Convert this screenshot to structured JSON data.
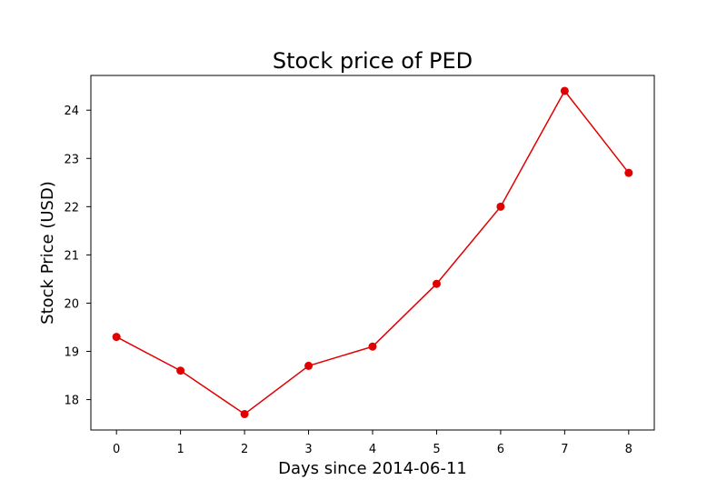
{
  "chart_data": {
    "type": "line",
    "title": "Stock price of PED",
    "xlabel": "Days since 2014-06-11",
    "ylabel": "Stock Price (USD)",
    "x": [
      0,
      1,
      2,
      3,
      4,
      5,
      6,
      7,
      8
    ],
    "series": [
      {
        "values": [
          19.3,
          18.6,
          17.7,
          18.7,
          19.1,
          20.4,
          22.0,
          24.4,
          22.7
        ],
        "color": "#e00000",
        "marker": "circle"
      }
    ],
    "xlim": [
      -0.4,
      8.4
    ],
    "ylim": [
      17.37,
      24.72
    ],
    "xticks": [
      0,
      1,
      2,
      3,
      4,
      5,
      6,
      7,
      8
    ],
    "yticks": [
      18,
      19,
      20,
      21,
      22,
      23,
      24
    ],
    "grid": false,
    "legend": false
  }
}
